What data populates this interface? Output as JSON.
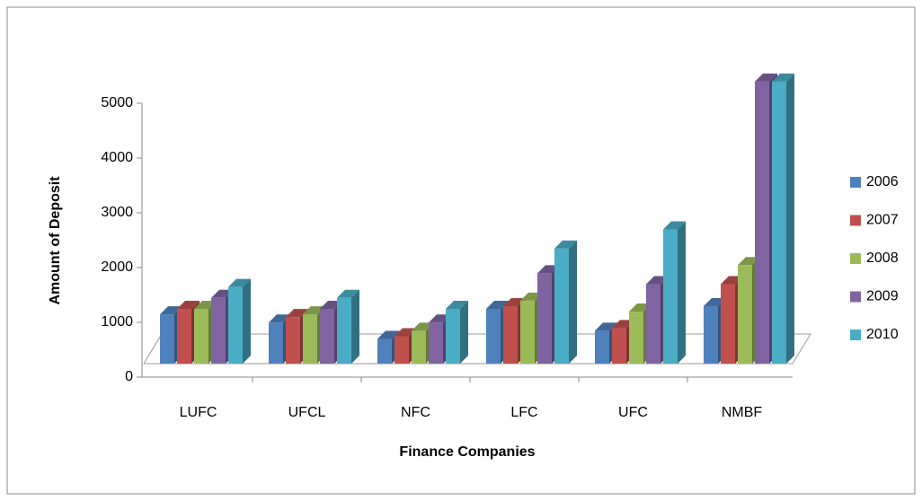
{
  "chart_data": {
    "type": "bar3d",
    "x_label": "Finance Companies",
    "y_label": "Amount of Deposit",
    "categories": [
      "LUFC",
      "UFCL",
      "NFC",
      "LFC",
      "UFC",
      "NMBF"
    ],
    "series": [
      {
        "name": "2006",
        "color": "#4f81bd",
        "values": [
          900,
          750,
          450,
          1000,
          600,
          1050
        ]
      },
      {
        "name": "2007",
        "color": "#c0504d",
        "values": [
          1000,
          850,
          500,
          1050,
          650,
          1450
        ]
      },
      {
        "name": "2008",
        "color": "#9bbb59",
        "values": [
          1000,
          900,
          600,
          1150,
          950,
          1800
        ]
      },
      {
        "name": "2009",
        "color": "#8064a2",
        "values": [
          1200,
          1000,
          750,
          1650,
          1450,
          5150
        ]
      },
      {
        "name": "2010",
        "color": "#4bacc6",
        "values": [
          1400,
          1200,
          1000,
          2100,
          2450,
          5150
        ]
      }
    ],
    "ylim": [
      0,
      5000
    ],
    "yticks": [
      0,
      1000,
      2000,
      3000,
      4000,
      5000
    ],
    "legend": "right"
  }
}
